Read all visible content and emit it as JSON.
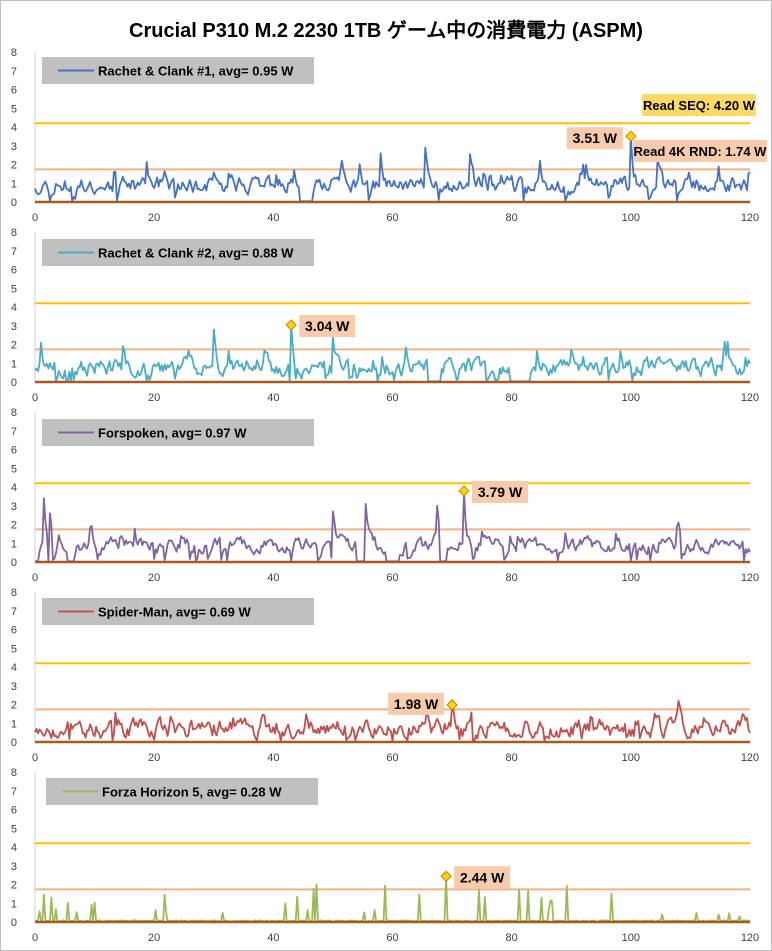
{
  "title": "Crucial P310 M.2 2230 1TB ゲーム中の消費電力 (ASPM)",
  "reference_lines": {
    "read_seq": {
      "value": 4.2,
      "color": "#FFC000",
      "label": "Read SEQ:  4.20 W"
    },
    "read_4k_rnd": {
      "value": 1.74,
      "color": "#F4B183",
      "label": "Read 4K RND:  1.74 W"
    }
  },
  "chart_data": [
    {
      "type": "line",
      "legend": "Rachet & Clank #1,  avg=  0.95 W",
      "color": "#4472C4",
      "xlim": [
        0,
        120
      ],
      "ylim": [
        0,
        8
      ],
      "xticks": [
        "0",
        "20",
        "40",
        "60",
        "80",
        "100",
        "120"
      ],
      "yticks": [
        "0",
        "1",
        "2",
        "3",
        "4",
        "5",
        "6",
        "7",
        "8"
      ],
      "peak": {
        "x": 100,
        "y": 3.51,
        "label": "3.51 W"
      },
      "profile": {
        "seed": 11,
        "base": 0.9,
        "amp": 0.75,
        "gaps": [
          [
            44.5,
            46.5
          ]
        ],
        "spikes": [
          [
            65.5,
            2.9
          ],
          [
            58,
            2.6
          ],
          [
            73,
            2.55
          ],
          [
            104.5,
            2.3
          ],
          [
            92,
            2.0
          ]
        ],
        "peak_x": 100,
        "peak_y": 3.51
      }
    },
    {
      "type": "line",
      "legend": "Rachet & Clank #2,  avg=  0.88 W",
      "color": "#4BACC6",
      "xlim": [
        0,
        120
      ],
      "ylim": [
        0,
        8
      ],
      "xticks": [
        "0",
        "20",
        "40",
        "60",
        "80",
        "100",
        "120"
      ],
      "yticks": [
        "0",
        "1",
        "2",
        "3",
        "4",
        "5",
        "6",
        "7",
        "8"
      ],
      "peak": {
        "x": 43,
        "y": 3.04,
        "label": "3.04 W"
      },
      "profile": {
        "seed": 23,
        "base": 0.8,
        "amp": 0.8,
        "gaps": [
          [
            66,
            68
          ],
          [
            80,
            83
          ]
        ],
        "spikes": [
          [
            30,
            2.8
          ],
          [
            50,
            2.45
          ],
          [
            1,
            2.1
          ]
        ],
        "peak_x": 43,
        "peak_y": 3.04
      }
    },
    {
      "type": "line",
      "legend": "Forspoken,  avg=  0.97 W",
      "color": "#8064A2",
      "xlim": [
        0,
        120
      ],
      "ylim": [
        0,
        8
      ],
      "xticks": [
        "0",
        "20",
        "40",
        "60",
        "80",
        "100",
        "120"
      ],
      "yticks": [
        "0",
        "1",
        "2",
        "3",
        "4",
        "5",
        "6",
        "7",
        "8"
      ],
      "peak": {
        "x": 72,
        "y": 3.79,
        "label": "3.79 W"
      },
      "profile": {
        "seed": 37,
        "base": 0.9,
        "amp": 0.65,
        "gaps": [
          [
            0,
            0.6
          ],
          [
            5.5,
            6.5
          ],
          [
            54,
            55
          ],
          [
            59,
            61
          ],
          [
            68,
            69
          ]
        ],
        "spikes": [
          [
            1.5,
            3.4
          ],
          [
            2.5,
            2.6
          ],
          [
            55.5,
            3.1
          ],
          [
            67.5,
            3.0
          ],
          [
            50,
            2.7
          ]
        ],
        "peak_x": 72,
        "peak_y": 3.79
      }
    },
    {
      "type": "line",
      "legend": "Spider-Man,  avg=  0.69 W",
      "color": "#C0504D",
      "xlim": [
        0,
        120
      ],
      "ylim": [
        0,
        8
      ],
      "xticks": [
        "0",
        "20",
        "40",
        "60",
        "80",
        "100",
        "120"
      ],
      "yticks": [
        "0",
        "1",
        "2",
        "3",
        "4",
        "5",
        "6",
        "7",
        "8"
      ],
      "peak": {
        "x": 70,
        "y": 1.98,
        "label": "1.98 W"
      },
      "profile": {
        "seed": 53,
        "base": 0.7,
        "amp": 0.85,
        "gaps": [],
        "spikes": [],
        "peak_x": 70,
        "peak_y": 1.98
      }
    },
    {
      "type": "line",
      "legend": "Forza Horizon 5,  avg=  0.28 W",
      "color": "#9BBB59",
      "xlim": [
        0,
        120
      ],
      "ylim": [
        0,
        8
      ],
      "xticks": [
        "0",
        "20",
        "40",
        "60",
        "80",
        "100",
        "120"
      ],
      "yticks": [
        "0",
        "1",
        "2",
        "3",
        "4",
        "5",
        "6",
        "7",
        "8"
      ],
      "peak": {
        "x": 69,
        "y": 2.44,
        "label": "2.44 W"
      },
      "profile": {
        "seed": 71,
        "base": 0.05,
        "amp": 0.05,
        "gaps": [],
        "spikes": [],
        "sparse": true,
        "peak_x": 69,
        "peak_y": 2.44
      }
    }
  ]
}
